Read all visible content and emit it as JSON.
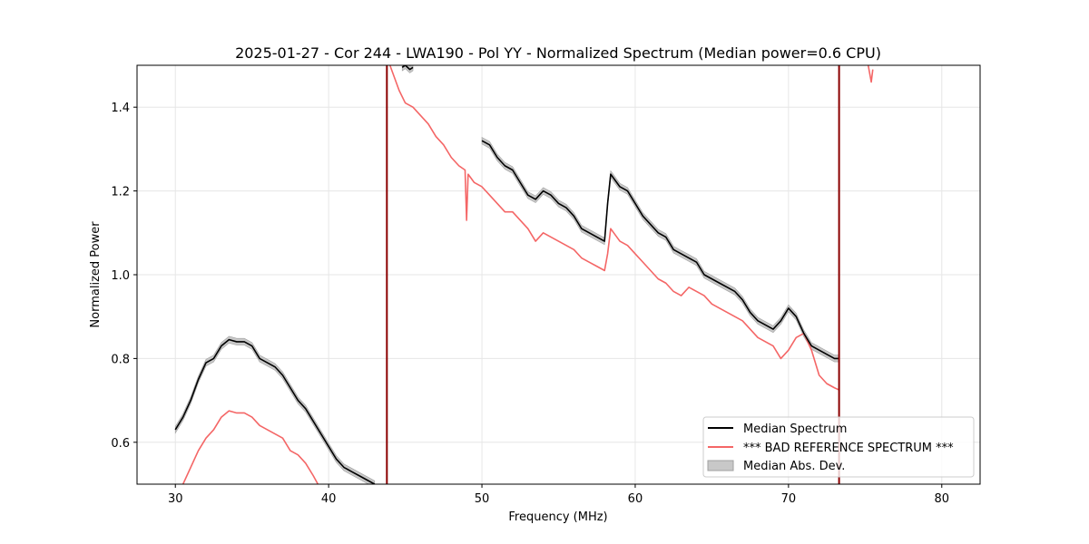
{
  "chart_data": {
    "type": "line",
    "title": "2025-01-27 - Cor 244 - LWA190 - Pol YY - Normalized Spectrum (Median power=0.6 CPU)",
    "xlabel": "Frequency (MHz)",
    "ylabel": "Normalized Power",
    "xlim": [
      27.5,
      82.5
    ],
    "ylim": [
      0.5,
      1.5
    ],
    "xticks": [
      30,
      40,
      50,
      60,
      70,
      80
    ],
    "yticks": [
      0.6,
      0.8,
      1.0,
      1.2,
      1.4
    ],
    "xtick_labels": [
      "30",
      "40",
      "50",
      "60",
      "70",
      "80"
    ],
    "ytick_labels": [
      "0.6",
      "0.8",
      "1.0",
      "1.2",
      "1.4"
    ],
    "grid": true,
    "legend_position": "lower-right",
    "vlines": [
      {
        "x": 43.8,
        "color": "#8b0000"
      },
      {
        "x": 73.3,
        "color": "#8b0000"
      }
    ],
    "series": [
      {
        "name": "Median Spectrum",
        "color": "#000000",
        "segments": [
          {
            "x": [
              30.0,
              30.5,
              31.0,
              31.5,
              32.0,
              32.5,
              33.0,
              33.5,
              34.0,
              34.5,
              35.0,
              35.5,
              36.0,
              36.5,
              37.0,
              37.5,
              38.0,
              38.5,
              39.0,
              39.5,
              40.0,
              40.5,
              41.0,
              41.5,
              42.0,
              42.5,
              43.0
            ],
            "y": [
              0.63,
              0.66,
              0.7,
              0.75,
              0.79,
              0.8,
              0.83,
              0.845,
              0.84,
              0.84,
              0.83,
              0.8,
              0.79,
              0.78,
              0.76,
              0.73,
              0.7,
              0.68,
              0.65,
              0.62,
              0.59,
              0.56,
              0.54,
              0.53,
              0.52,
              0.51,
              0.5
            ]
          },
          {
            "x": [
              44.8,
              45.0,
              45.3,
              45.5
            ],
            "y": [
              1.495,
              1.5,
              1.49,
              1.495
            ]
          },
          {
            "x": [
              50.0,
              50.5,
              51.0,
              51.5,
              52.0,
              52.5,
              53.0,
              53.5,
              54.0,
              54.5,
              55.0,
              55.5,
              56.0,
              56.5,
              57.0,
              57.5,
              58.0,
              58.2,
              58.4,
              58.6,
              59.0,
              59.5,
              60.0,
              60.5,
              61.0,
              61.5,
              62.0,
              62.5,
              63.0,
              63.5,
              64.0,
              64.5,
              65.0,
              65.5,
              66.0,
              66.5,
              67.0,
              67.5,
              68.0,
              68.5,
              69.0,
              69.5,
              70.0,
              70.5,
              71.0,
              71.5,
              72.0,
              72.5,
              73.0,
              73.3
            ],
            "y": [
              1.32,
              1.31,
              1.28,
              1.26,
              1.25,
              1.22,
              1.19,
              1.18,
              1.2,
              1.19,
              1.17,
              1.16,
              1.14,
              1.11,
              1.1,
              1.09,
              1.08,
              1.17,
              1.24,
              1.23,
              1.21,
              1.2,
              1.17,
              1.14,
              1.12,
              1.1,
              1.09,
              1.06,
              1.05,
              1.04,
              1.03,
              1.0,
              0.99,
              0.98,
              0.97,
              0.96,
              0.94,
              0.91,
              0.89,
              0.88,
              0.87,
              0.89,
              0.92,
              0.9,
              0.86,
              0.83,
              0.82,
              0.81,
              0.8,
              0.8
            ]
          }
        ]
      },
      {
        "name": "*** BAD REFERENCE SPECTRUM ***",
        "color": "#f46666",
        "segments": [
          {
            "x": [
              30.5,
              31.0,
              31.5,
              32.0,
              32.5,
              33.0,
              33.5,
              34.0,
              34.5,
              35.0,
              35.5,
              36.0,
              36.5,
              37.0,
              37.5,
              38.0,
              38.5,
              39.0,
              39.3
            ],
            "y": [
              0.5,
              0.54,
              0.58,
              0.61,
              0.63,
              0.66,
              0.675,
              0.67,
              0.67,
              0.66,
              0.64,
              0.63,
              0.62,
              0.61,
              0.58,
              0.57,
              0.55,
              0.52,
              0.5
            ]
          },
          {
            "x": [
              44.0,
              44.3,
              44.6,
              45.0,
              45.5,
              46.0,
              46.5,
              47.0,
              47.5,
              48.0,
              48.5,
              48.9,
              49.0,
              49.1,
              49.5,
              50.0,
              50.5,
              51.0,
              51.5,
              52.0,
              52.5,
              53.0,
              53.5,
              54.0,
              54.5,
              55.0,
              55.5,
              56.0,
              56.5,
              57.0,
              57.5,
              58.0,
              58.2,
              58.4,
              58.6,
              59.0,
              59.5,
              60.0,
              60.5,
              61.0,
              61.5,
              62.0,
              62.5,
              63.0,
              63.5,
              64.0,
              64.5,
              65.0,
              65.5,
              66.0,
              66.5,
              67.0,
              67.5,
              68.0,
              68.5,
              69.0,
              69.5,
              70.0,
              70.5,
              71.0,
              71.5,
              72.0,
              72.5,
              73.0,
              73.3
            ],
            "y": [
              1.5,
              1.47,
              1.44,
              1.41,
              1.4,
              1.38,
              1.36,
              1.33,
              1.31,
              1.28,
              1.26,
              1.25,
              1.13,
              1.24,
              1.22,
              1.21,
              1.19,
              1.17,
              1.15,
              1.15,
              1.13,
              1.11,
              1.08,
              1.1,
              1.09,
              1.08,
              1.07,
              1.06,
              1.04,
              1.03,
              1.02,
              1.01,
              1.05,
              1.11,
              1.1,
              1.08,
              1.07,
              1.05,
              1.03,
              1.01,
              0.99,
              0.98,
              0.96,
              0.95,
              0.97,
              0.96,
              0.95,
              0.93,
              0.92,
              0.91,
              0.9,
              0.89,
              0.87,
              0.85,
              0.84,
              0.83,
              0.8,
              0.82,
              0.85,
              0.86,
              0.82,
              0.76,
              0.74,
              0.73,
              0.725
            ]
          },
          {
            "x": [
              75.2,
              75.3,
              75.4,
              75.5
            ],
            "y": [
              1.5,
              1.48,
              1.46,
              1.49
            ]
          }
        ]
      }
    ],
    "mad_band": {
      "name": "Median Abs. Dev.",
      "color": "#c8c8c8",
      "edge_color": "#a0a0a0",
      "width": 0.008
    }
  }
}
